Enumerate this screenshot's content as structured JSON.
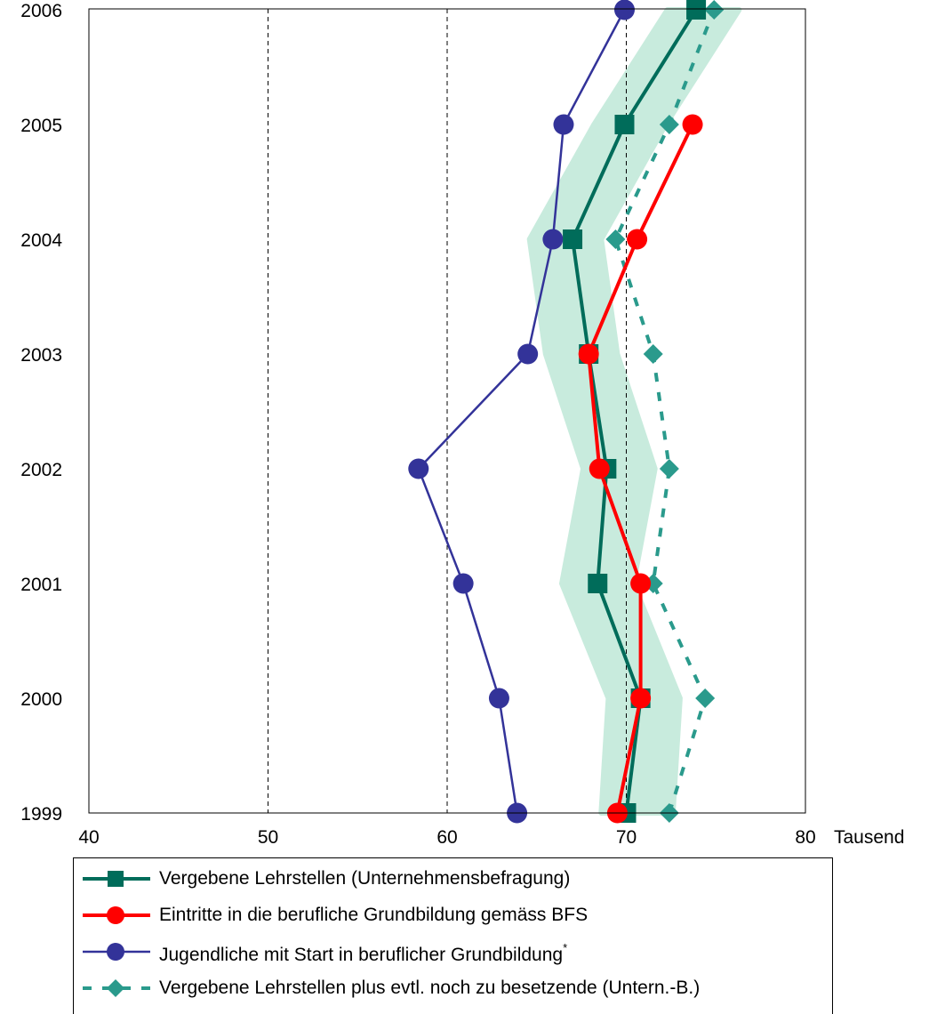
{
  "chart_data": {
    "type": "line",
    "orientation": "horizontal-values",
    "x_unit_label": "Tausend",
    "xlim": [
      40,
      80
    ],
    "x_ticks": [
      "40",
      "50",
      "60",
      "70",
      "80"
    ],
    "x_gridlines_dashed": [
      50,
      60,
      70
    ],
    "categories": [
      "1999",
      "2000",
      "2001",
      "2002",
      "2003",
      "2004",
      "2005",
      "2006"
    ],
    "series": [
      {
        "key": "vergebene",
        "name": "Vergebene Lehrstellen (Unternehmensbefragung)",
        "color": "#006c5a",
        "marker": "square",
        "line": "solid",
        "values": [
          70.0,
          70.8,
          68.4,
          68.9,
          67.9,
          67.0,
          69.9,
          73.9
        ]
      },
      {
        "key": "eintritte",
        "name": "Eintritte in die berufliche Grundbildung gemäss BFS",
        "color": "#ff0000",
        "marker": "circle",
        "line": "solid",
        "values": [
          69.5,
          70.8,
          70.8,
          68.5,
          67.9,
          70.6,
          73.7,
          null
        ]
      },
      {
        "key": "jugendliche",
        "name": "Jugendliche mit Start in beruflicher Grundbildung",
        "name_superscript": "*",
        "color": "#333399",
        "marker": "circle",
        "line": "solid",
        "values": [
          63.9,
          62.9,
          60.9,
          58.4,
          64.5,
          65.9,
          66.5,
          69.9
        ]
      },
      {
        "key": "plus",
        "name": "Vergebene Lehrstellen plus evtl. noch zu besetzende (Untern.-B.)",
        "color": "#2a9a8c",
        "marker": "diamond",
        "line": "dashed",
        "values": [
          72.4,
          74.4,
          71.5,
          72.4,
          71.5,
          69.4,
          72.4,
          74.9
        ]
      }
    ],
    "band": {
      "color": "#c8ebdd",
      "half_width": 2.0,
      "follows": "vergebene",
      "shifts": [
        0.6,
        0.2,
        0.0,
        0.7,
        -0.4,
        -0.4,
        0.3,
        0.4
      ]
    }
  }
}
